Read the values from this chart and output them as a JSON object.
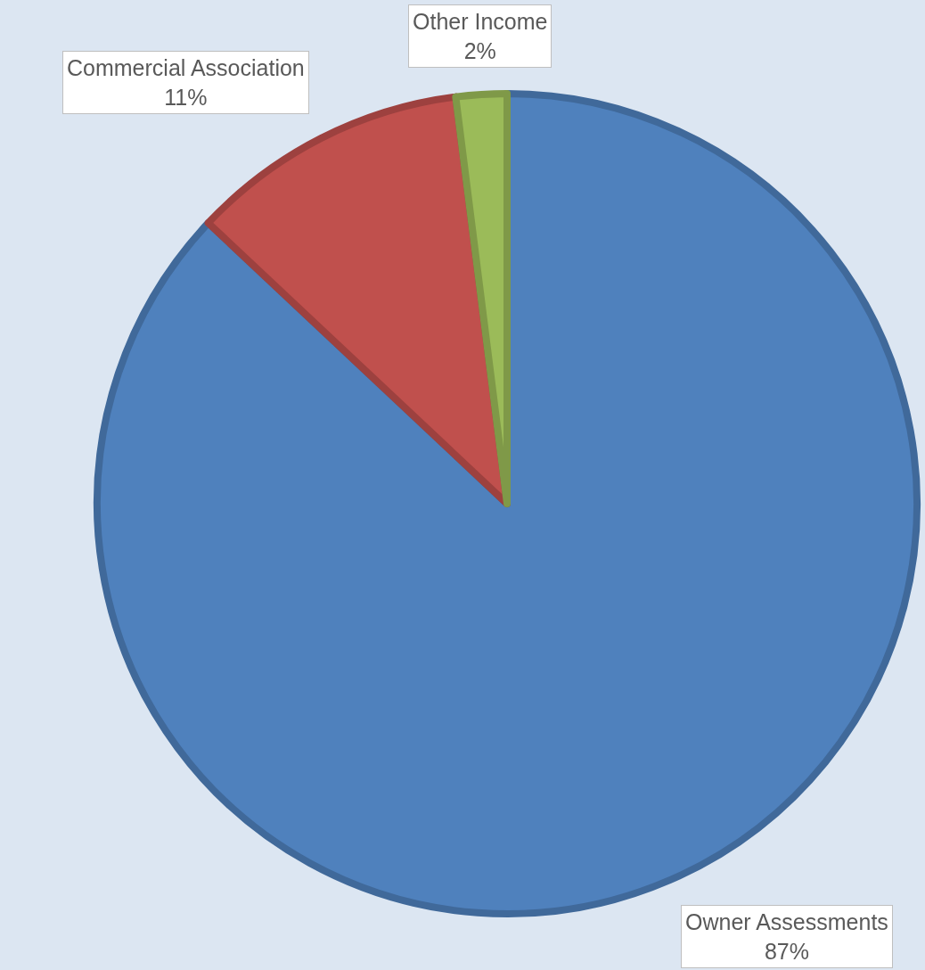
{
  "chart_data": {
    "type": "pie",
    "categories": [
      "Owner Assessments",
      "Commercial Association",
      "Other Income"
    ],
    "values": [
      87,
      11,
      2
    ],
    "value_labels": [
      "87%",
      "11%",
      "2%"
    ],
    "colors": [
      "#4f81bd",
      "#c0504d",
      "#9bbb59"
    ],
    "legend": false
  }
}
